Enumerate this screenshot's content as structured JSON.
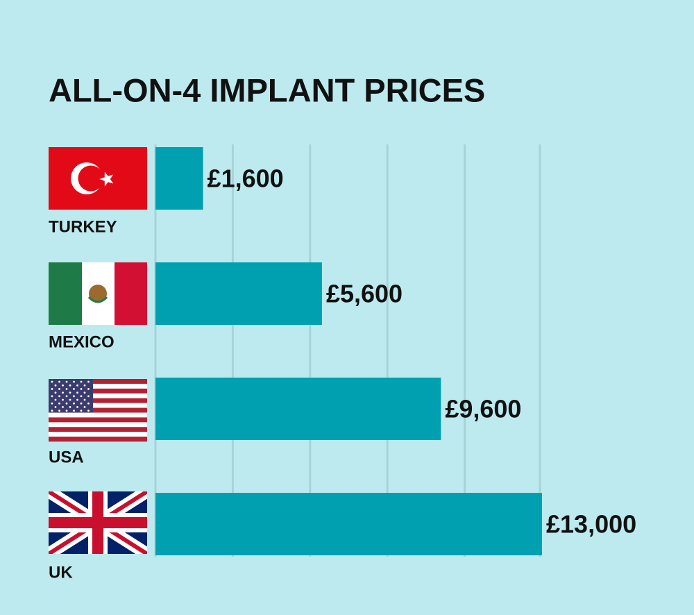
{
  "chart_data": {
    "type": "hbar",
    "title": "ALL-ON-4 IMPLANT PRICES",
    "categories": [
      "TURKEY",
      "MEXICO",
      "USA",
      "UK"
    ],
    "values": [
      1600,
      5600,
      9600,
      13000
    ],
    "value_labels": [
      "£1,600",
      "£5,600",
      "£9,600",
      "£13,000"
    ],
    "color": "#00a0b0",
    "xlim": [
      0,
      13000
    ],
    "grid": true
  }
}
